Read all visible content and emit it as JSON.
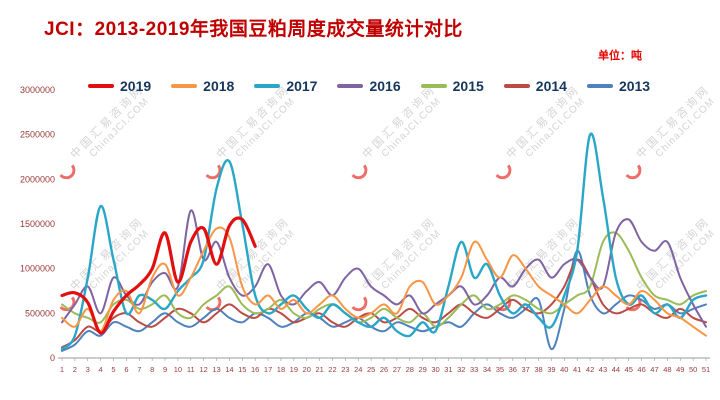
{
  "header": {
    "title": "JCI：2013-2019年我国豆粕周度成交量统计对比",
    "unit_label": "单位：吨"
  },
  "watermark": {
    "line1": "中国汇易咨询网",
    "line2": "ChinaJCI.COM"
  },
  "chart_data": {
    "type": "line",
    "title": "JCI：2013-2019年我国豆粕周度成交量统计对比",
    "xlabel": "",
    "ylabel": "",
    "unit": "吨",
    "ylim": [
      0,
      3000000
    ],
    "yticks": [
      0,
      500000,
      1000000,
      1500000,
      2000000,
      2500000,
      3000000
    ],
    "x": [
      1,
      2,
      3,
      4,
      5,
      6,
      7,
      8,
      9,
      10,
      11,
      12,
      13,
      14,
      15,
      16,
      17,
      18,
      19,
      20,
      21,
      22,
      23,
      24,
      25,
      26,
      27,
      28,
      29,
      30,
      31,
      32,
      33,
      34,
      35,
      36,
      37,
      38,
      39,
      40,
      41,
      42,
      43,
      44,
      45,
      46,
      47,
      48,
      49,
      50,
      51
    ],
    "grid": false,
    "legend_position": "top",
    "series": [
      {
        "name": "2019",
        "color": "#e10f0f",
        "values": [
          700000,
          730000,
          620000,
          280000,
          520000,
          700000,
          820000,
          1000000,
          1400000,
          850000,
          1300000,
          1450000,
          1050000,
          1480000,
          1550000,
          1250000
        ]
      },
      {
        "name": "2018",
        "color": "#f79646",
        "values": [
          450000,
          350000,
          550000,
          300000,
          650000,
          750000,
          500000,
          900000,
          1050000,
          700000,
          900000,
          1200000,
          1450000,
          1350000,
          800000,
          600000,
          700000,
          550000,
          650000,
          500000,
          600000,
          700000,
          550000,
          450000,
          500000,
          600000,
          500000,
          800000,
          850000,
          600000,
          700000,
          900000,
          1300000,
          1100000,
          900000,
          1150000,
          1000000,
          800000,
          700000,
          600000,
          500000,
          650000,
          800000,
          700000,
          600000,
          750000,
          650000,
          500000,
          450000,
          350000,
          250000
        ]
      },
      {
        "name": "2017",
        "color": "#2aa7c7",
        "values": [
          100000,
          250000,
          900000,
          1700000,
          1100000,
          500000,
          700000,
          650000,
          550000,
          750000,
          900000,
          1100000,
          1900000,
          2200000,
          1500000,
          700000,
          500000,
          600000,
          700000,
          550000,
          450000,
          600000,
          500000,
          400000,
          350000,
          450000,
          300000,
          250000,
          400000,
          300000,
          800000,
          1300000,
          900000,
          1050000,
          700000,
          500000,
          600000,
          450000,
          350000,
          700000,
          1200000,
          2500000,
          1800000,
          900000,
          600000,
          700000,
          500000,
          600000,
          450000,
          650000,
          700000
        ]
      },
      {
        "name": "2016",
        "color": "#8064a2",
        "values": [
          400000,
          600000,
          800000,
          500000,
          900000,
          700000,
          600000,
          850000,
          950000,
          800000,
          1650000,
          1100000,
          1300000,
          900000,
          700000,
          800000,
          1050000,
          700000,
          600000,
          750000,
          850000,
          700000,
          900000,
          1000000,
          800000,
          700000,
          600000,
          700000,
          500000,
          600000,
          700000,
          800000,
          600000,
          700000,
          900000,
          800000,
          1000000,
          1100000,
          900000,
          1050000,
          1100000,
          900000,
          800000,
          1400000,
          1550000,
          1300000,
          1200000,
          1300000,
          900000,
          600000,
          350000
        ]
      },
      {
        "name": "2015",
        "color": "#9bbb59",
        "values": [
          600000,
          500000,
          450000,
          400000,
          600000,
          650000,
          550000,
          600000,
          700000,
          500000,
          450000,
          600000,
          700000,
          800000,
          600000,
          500000,
          550000,
          650000,
          500000,
          450000,
          550000,
          600000,
          500000,
          400000,
          450000,
          550000,
          450000,
          400000,
          500000,
          350000,
          450000,
          600000,
          700000,
          550000,
          600000,
          700000,
          650000,
          550000,
          500000,
          600000,
          700000,
          800000,
          1300000,
          1400000,
          1200000,
          900000,
          700000,
          650000,
          600000,
          700000,
          750000
        ]
      },
      {
        "name": "2014",
        "color": "#bd4b45",
        "values": [
          120000,
          200000,
          350000,
          300000,
          450000,
          500000,
          400000,
          350000,
          450000,
          550000,
          500000,
          400000,
          500000,
          600000,
          500000,
          450000,
          550000,
          500000,
          400000,
          450000,
          500000,
          400000,
          350000,
          450000,
          500000,
          400000,
          450000,
          550000,
          450000,
          400000,
          500000,
          600000,
          500000,
          450000,
          550000,
          650000,
          550000,
          500000,
          600000,
          800000,
          1100000,
          900000,
          600000,
          500000,
          550000,
          600000,
          500000,
          450000,
          550000,
          450000,
          400000
        ]
      },
      {
        "name": "2013",
        "color": "#4f81bd",
        "values": [
          80000,
          150000,
          300000,
          250000,
          400000,
          350000,
          300000,
          400000,
          500000,
          400000,
          350000,
          450000,
          550000,
          450000,
          400000,
          500000,
          450000,
          350000,
          400000,
          500000,
          450000,
          350000,
          400000,
          450000,
          350000,
          300000,
          400000,
          350000,
          300000,
          350000,
          400000,
          350000,
          500000,
          600000,
          500000,
          450000,
          550000,
          650000,
          100000,
          550000,
          1200000,
          700000,
          500000,
          600000,
          700000,
          650000,
          550000,
          600000,
          500000,
          550000,
          600000
        ]
      }
    ]
  },
  "style": {
    "axis_label_color": "#993b3b",
    "axis_line_color": "#9a9a9a",
    "legend_text_color": "#16365c"
  }
}
